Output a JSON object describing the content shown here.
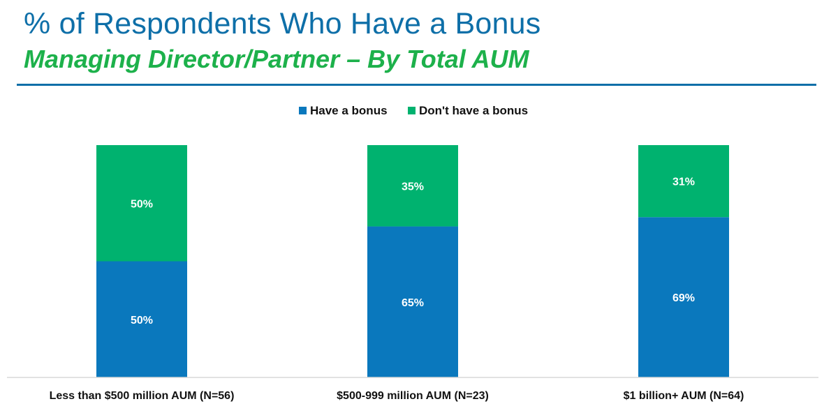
{
  "header": {
    "title": "% of Respondents Who Have a Bonus",
    "subtitle": "Managing Director/Partner – By Total AUM"
  },
  "chart_data": {
    "type": "bar",
    "stacked": true,
    "categories": [
      "Less than $500 million AUM (N=56)",
      "$500-999 million AUM (N=23)",
      "$1 billion+ AUM (N=64)"
    ],
    "series": [
      {
        "name": "Have a bonus",
        "values": [
          50,
          65,
          69
        ],
        "labels": [
          "50%",
          "65%",
          "69%"
        ],
        "color": "#0a78bd"
      },
      {
        "name": "Don't have a bonus",
        "values": [
          50,
          35,
          31
        ],
        "labels": [
          "50%",
          "35%",
          "31%"
        ],
        "color": "#00b26f"
      }
    ],
    "ylim": [
      0,
      100
    ],
    "grid": false,
    "legend": "top-center"
  }
}
